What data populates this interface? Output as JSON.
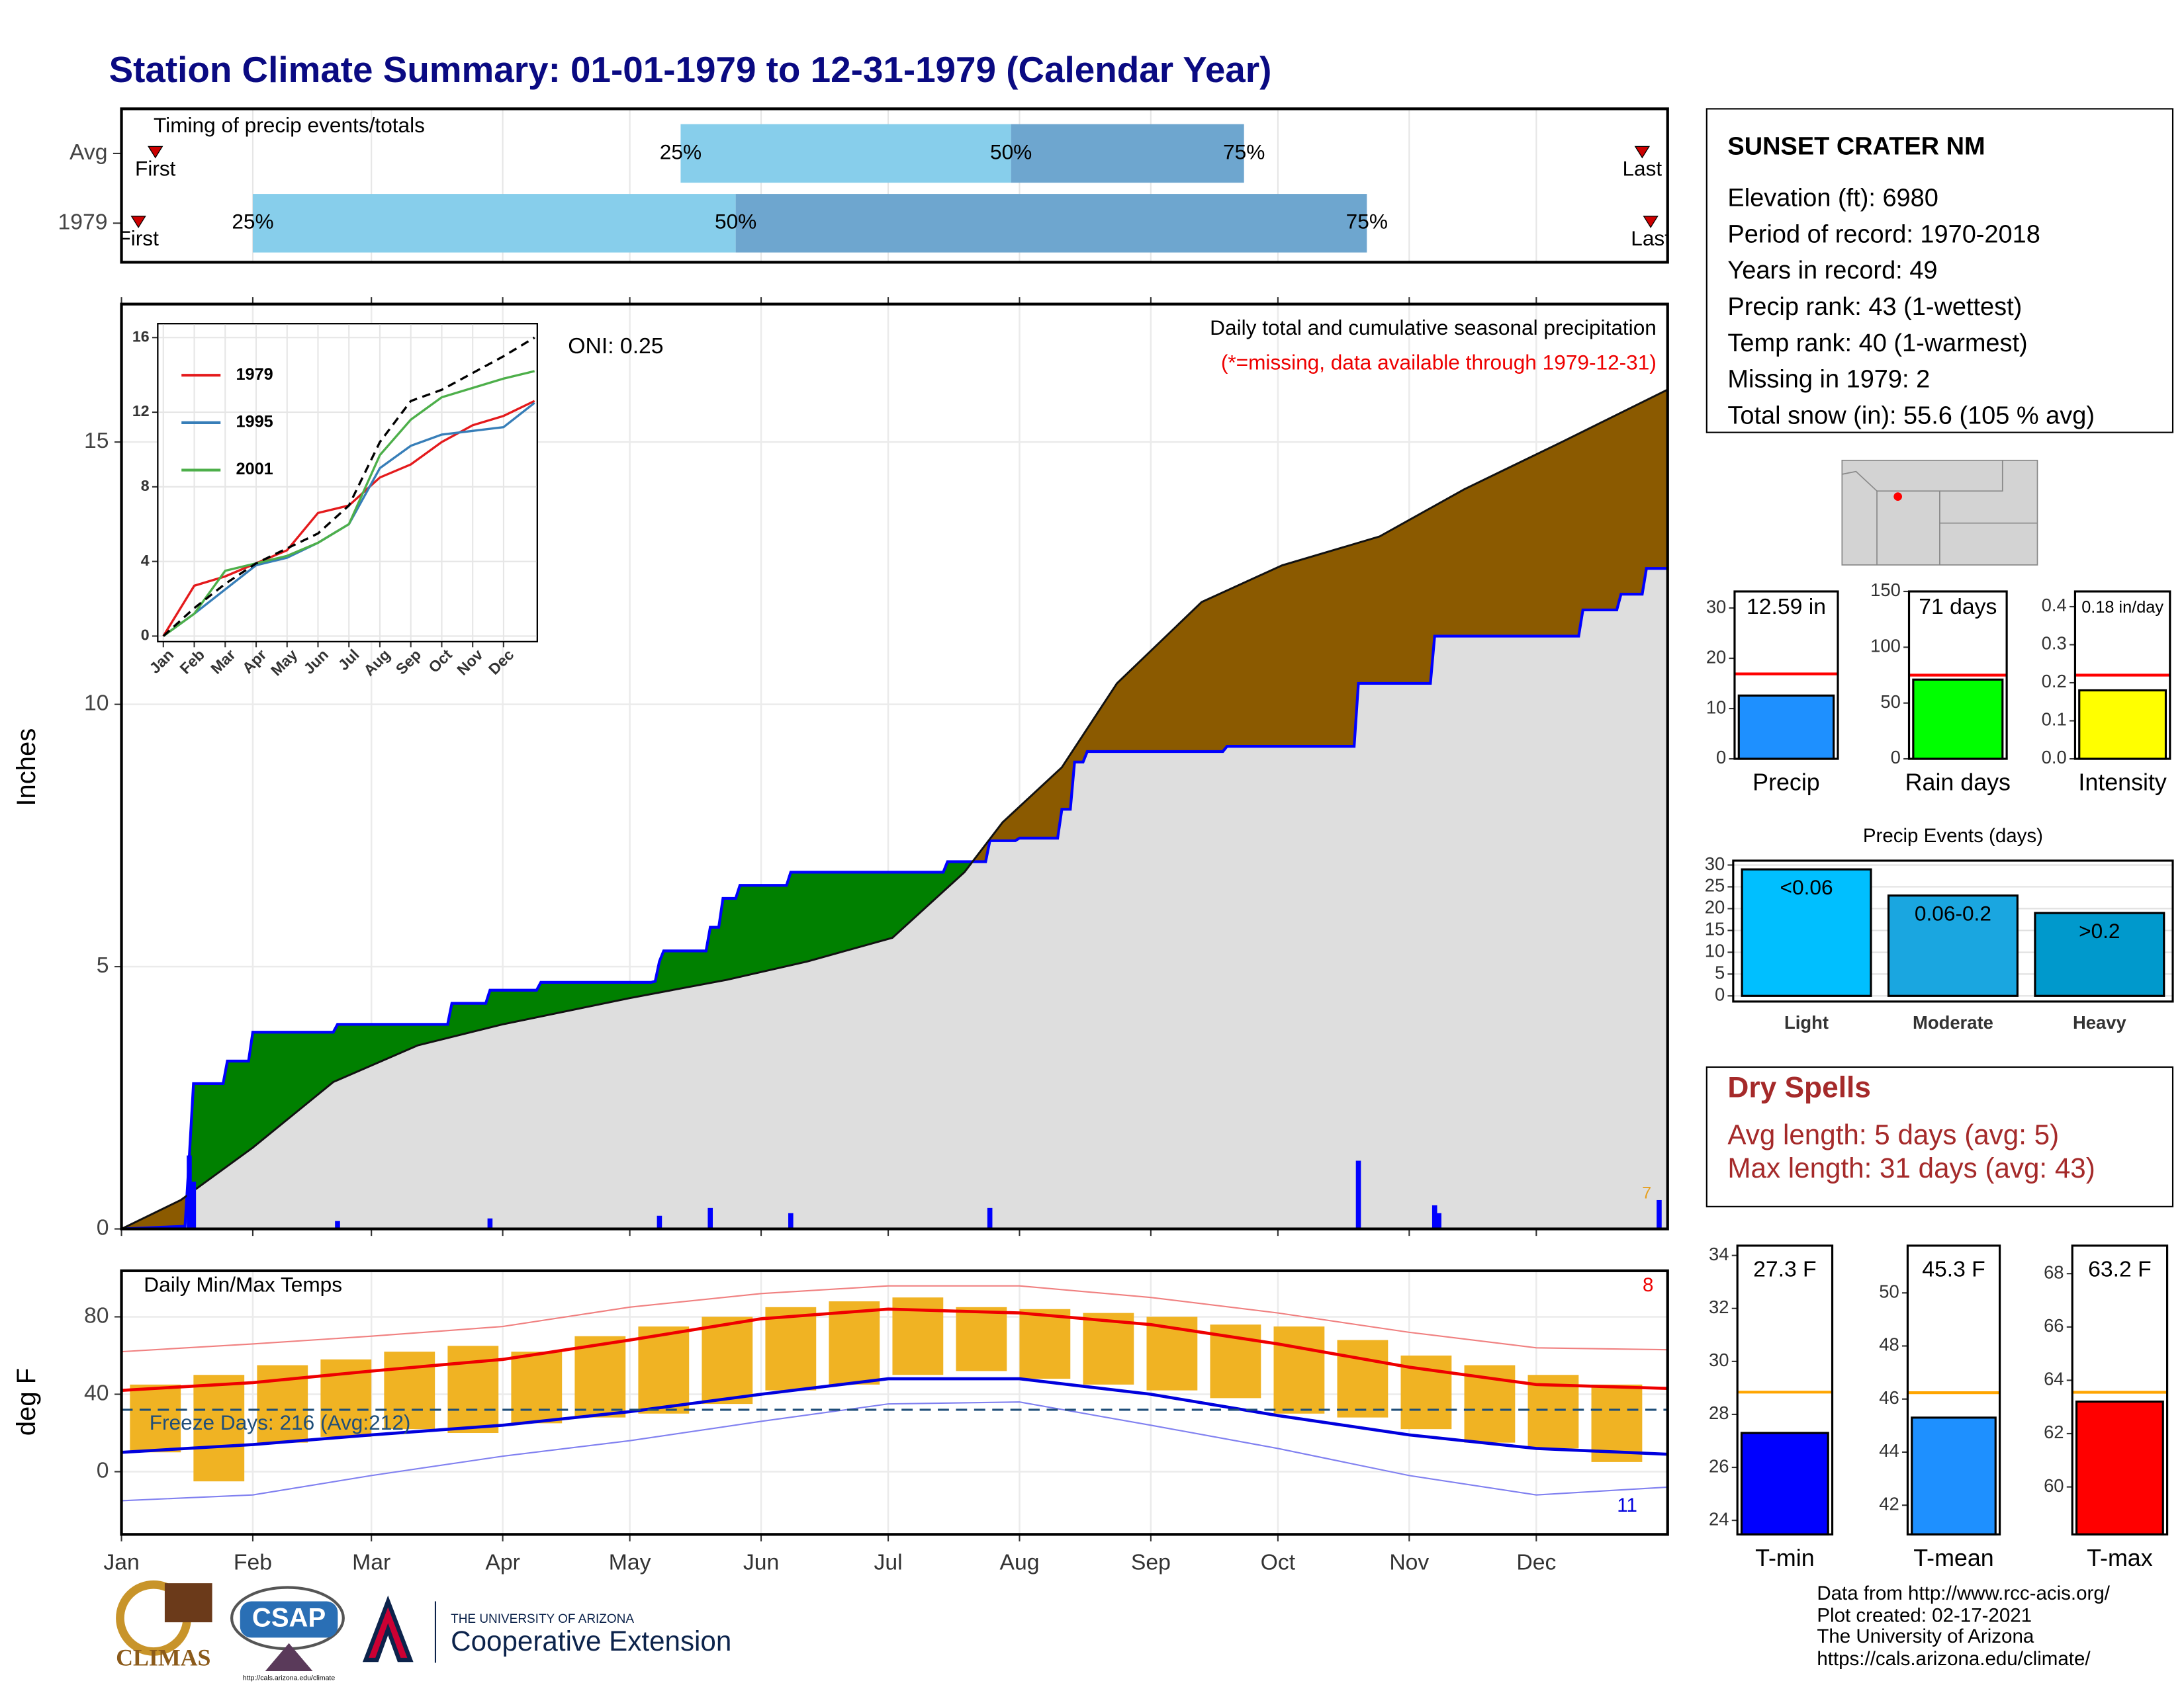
{
  "title": "Station Climate Summary: 01-01-1979 to 12-31-1979 (Calendar Year)",
  "station_info": {
    "name": "SUNSET CRATER NM",
    "lines": [
      "Elevation (ft): 6980",
      "Period of record: 1970-2018",
      "Years in record: 49",
      "Precip rank: 43 (1-wettest)",
      "Temp rank: 40 (1-warmest)",
      "Missing in 1979: 2",
      "Total snow (in): 55.6 (105 % avg)"
    ]
  },
  "dry_spells": {
    "title": "Dry Spells",
    "lines": [
      "Avg length: 5 days (avg: 5)",
      "Max length: 31 days (avg: 43)"
    ]
  },
  "footer": {
    "lines": [
      "Data from http://www.rcc-acis.org/",
      "Plot created: 02-17-2021",
      "The University of Arizona",
      "https://cals.arizona.edu/climate/"
    ],
    "logos": [
      "CLIMAS",
      "CSAP",
      "http://cals.arizona.edu/climate",
      "THE UNIVERSITY OF ARIZONA",
      "Cooperative Extension"
    ]
  },
  "chart_data": [
    {
      "type": "timeline",
      "title": "Timing of precip events/totals",
      "xlim": [
        0,
        365
      ],
      "xticks": [
        0,
        31,
        59,
        90,
        120,
        151,
        181,
        212,
        243,
        273,
        304,
        334
      ],
      "rows": [
        {
          "label": "Avg",
          "first": 8,
          "q25": 132,
          "q50": 210,
          "q75": 265,
          "last": 359
        },
        {
          "label": "1979",
          "first": 4,
          "q25": 31,
          "q50": 145,
          "q75": 294,
          "last": 361
        }
      ],
      "point_labels": {
        "first": "First",
        "q25": "25%",
        "q50": "50%",
        "q75": "75%",
        "last": "Last"
      },
      "colors": [
        "#87ceeb",
        "#6ea6cf"
      ],
      "marker_color": "#cc0000"
    },
    {
      "type": "area",
      "ylabel": "Inches",
      "annotation": "Daily total and cumulative seasonal precipitation",
      "note": "(*=missing, data available through 1979-12-31)",
      "oni": "ONI: 0.25",
      "corner_note": "7",
      "xlim": [
        0,
        365
      ],
      "xticks": [
        0,
        31,
        59,
        90,
        120,
        151,
        181,
        212,
        243,
        273,
        304,
        334
      ],
      "ylim": [
        0,
        17.63
      ],
      "yticks": [
        0,
        5,
        10,
        15
      ],
      "grid": true,
      "fill_above": "#008000",
      "fill_below": "#8b5a00",
      "fill_base": "#dedede",
      "series": [
        {
          "color": "#0000ff",
          "x": [
            0,
            15,
            16,
            17,
            24,
            25,
            30,
            31,
            50,
            51,
            77,
            78,
            86,
            87,
            98,
            99,
            125,
            126,
            127,
            128,
            138,
            139,
            141,
            142,
            145,
            146,
            157,
            158,
            194,
            195,
            204,
            205,
            211,
            212,
            221,
            222,
            224,
            225,
            227,
            228,
            260,
            261,
            291,
            292,
            309,
            310,
            344,
            345,
            353,
            354,
            359,
            360,
            365
          ],
          "values": [
            0,
            0.05,
            1.36,
            2.77,
            2.77,
            3.2,
            3.2,
            3.75,
            3.75,
            3.9,
            3.9,
            4.3,
            4.3,
            4.55,
            4.55,
            4.7,
            4.7,
            4.72,
            5.1,
            5.3,
            5.3,
            5.75,
            5.75,
            6.3,
            6.3,
            6.55,
            6.55,
            6.8,
            6.8,
            7.0,
            7.0,
            7.4,
            7.4,
            7.45,
            7.45,
            8.0,
            8.0,
            8.9,
            8.9,
            9.1,
            9.1,
            9.2,
            9.2,
            10.4,
            10.4,
            11.3,
            11.3,
            11.8,
            11.8,
            12.1,
            12.1,
            12.59,
            12.59
          ]
        },
        {
          "color": "#111111",
          "x": [
            0,
            14,
            31,
            50,
            70,
            90,
            120,
            143,
            162,
            182,
            199,
            208,
            222,
            235,
            255,
            274,
            297,
            317,
            340,
            365
          ],
          "values": [
            0,
            0.55,
            1.55,
            2.8,
            3.5,
            3.9,
            4.4,
            4.75,
            5.1,
            5.55,
            6.8,
            7.75,
            8.8,
            10.4,
            11.95,
            12.65,
            13.2,
            14.1,
            15.0,
            16.0
          ]
        }
      ],
      "daily": {
        "color": "#0000ff",
        "x": [
          16,
          17,
          51,
          87,
          127,
          139,
          158,
          205,
          292,
          310,
          311,
          363
        ],
        "values": [
          1.4,
          0.9,
          0.15,
          0.2,
          0.25,
          0.4,
          0.3,
          0.4,
          1.3,
          0.45,
          0.3,
          0.55
        ]
      }
    },
    {
      "type": "line",
      "xlim": [
        0,
        12
      ],
      "ylim": [
        0,
        16
      ],
      "yticks": [
        0,
        4,
        8,
        12,
        16
      ],
      "xticks": [
        {
          "value": 0,
          "label": "Jan"
        },
        {
          "value": 1,
          "label": "Feb"
        },
        {
          "value": 2,
          "label": "Mar"
        },
        {
          "value": 3,
          "label": "Apr"
        },
        {
          "value": 4,
          "label": "May"
        },
        {
          "value": 5,
          "label": "Jun"
        },
        {
          "value": 6,
          "label": "Jul"
        },
        {
          "value": 7,
          "label": "Aug"
        },
        {
          "value": 8,
          "label": "Sep"
        },
        {
          "value": 9,
          "label": "Oct"
        },
        {
          "value": 10,
          "label": "Nov"
        },
        {
          "value": 11,
          "label": "Dec"
        }
      ],
      "x": [
        0,
        1,
        2,
        3,
        4,
        5,
        6,
        7,
        8,
        9,
        10,
        11,
        12
      ],
      "series": [
        {
          "name": "1979",
          "color": "#e41a1c",
          "values": [
            0,
            2.7,
            3.2,
            3.9,
            4.6,
            6.6,
            7.0,
            8.5,
            9.2,
            10.4,
            11.3,
            11.8,
            12.6
          ]
        },
        {
          "name": "1995",
          "color": "#377eb8",
          "values": [
            0,
            1.2,
            2.5,
            3.8,
            4.2,
            5.0,
            6.0,
            9.0,
            10.2,
            10.8,
            11.0,
            11.2,
            12.5
          ]
        },
        {
          "name": "2001",
          "color": "#4daf4a",
          "values": [
            0,
            1.2,
            3.5,
            3.9,
            4.3,
            5.0,
            6.0,
            9.7,
            11.6,
            12.8,
            13.3,
            13.8,
            14.2
          ]
        },
        {
          "color": "#000000",
          "dash": true,
          "values": [
            0,
            1.5,
            2.8,
            3.9,
            4.7,
            5.5,
            7.0,
            10.4,
            12.6,
            13.2,
            14.1,
            15.0,
            16.0
          ]
        }
      ]
    },
    {
      "type": "range",
      "title": "Daily Min/Max Temps",
      "ylabel": "deg F",
      "freeze_text": "Freeze Days: 216 (Avg:212)",
      "freeze_line": 32,
      "high_count": "8",
      "low_count": "11",
      "xlim": [
        0,
        365
      ],
      "ylim": [
        -32.4,
        103.8
      ],
      "yticks": [
        0,
        40,
        80
      ],
      "grid": true,
      "xticks": [
        {
          "value": 0,
          "label": "Jan"
        },
        {
          "value": 31,
          "label": "Feb"
        },
        {
          "value": 59,
          "label": "Mar"
        },
        {
          "value": 90,
          "label": "Apr"
        },
        {
          "value": 120,
          "label": "May"
        },
        {
          "value": 151,
          "label": "Jun"
        },
        {
          "value": 181,
          "label": "Jul"
        },
        {
          "value": 212,
          "label": "Aug"
        },
        {
          "value": 243,
          "label": "Sep"
        },
        {
          "value": 273,
          "label": "Oct"
        },
        {
          "value": 304,
          "label": "Nov"
        },
        {
          "value": 334,
          "label": "Dec"
        }
      ],
      "x": [
        0,
        31,
        59,
        90,
        120,
        151,
        181,
        212,
        243,
        273,
        304,
        334,
        365
      ],
      "series": [
        {
          "color": "#f08080",
          "width": 1,
          "values": [
            62,
            66,
            70,
            75,
            85,
            92,
            96,
            96,
            90,
            82,
            72,
            64,
            63
          ]
        },
        {
          "color": "#ee0000",
          "width": 2.2,
          "values": [
            42,
            46,
            52,
            58,
            68,
            79,
            84,
            82,
            76,
            66,
            54,
            45,
            43
          ]
        },
        {
          "color": "#0000dd",
          "width": 2.2,
          "values": [
            10,
            14,
            19,
            24,
            31,
            40,
            48,
            48,
            40,
            29,
            19,
            12,
            9
          ]
        },
        {
          "color": "#8080f0",
          "width": 1,
          "values": [
            -15,
            -12,
            -2,
            8,
            16,
            26,
            35,
            36,
            24,
            12,
            -2,
            -12,
            -8
          ]
        }
      ],
      "bars": {
        "color": "#f0b323",
        "x": [
          8,
          23,
          38,
          53,
          68,
          83,
          98,
          113,
          128,
          143,
          158,
          173,
          188,
          203,
          218,
          233,
          248,
          263,
          278,
          293,
          308,
          323,
          338,
          353
        ],
        "low": [
          10,
          -5,
          15,
          18,
          22,
          20,
          25,
          28,
          30,
          35,
          42,
          45,
          50,
          52,
          48,
          45,
          42,
          38,
          30,
          28,
          22,
          15,
          12,
          5
        ],
        "high": [
          45,
          50,
          55,
          58,
          62,
          65,
          62,
          70,
          75,
          80,
          85,
          88,
          90,
          85,
          84,
          82,
          80,
          76,
          75,
          68,
          60,
          55,
          50,
          45
        ]
      }
    },
    {
      "type": "bar",
      "categories": [
        "Precip"
      ],
      "values": [
        12.59
      ],
      "value_labels": [
        "12.59 in"
      ],
      "color": "#1e90ff",
      "ylim": [
        0,
        33.3
      ],
      "yticks": [
        0,
        10,
        20,
        30
      ],
      "reference": 16.9,
      "reference_color": "#ff0000"
    },
    {
      "type": "bar",
      "categories": [
        "Rain days"
      ],
      "values": [
        71
      ],
      "value_labels": [
        "71 days"
      ],
      "color": "#00ff00",
      "ylim": [
        0,
        150
      ],
      "yticks": [
        0,
        50,
        100,
        150
      ],
      "reference": 75,
      "reference_color": "#ff0000"
    },
    {
      "type": "bar",
      "categories": [
        "Intensity"
      ],
      "values": [
        0.18
      ],
      "value_labels": [
        "0.18 in/day"
      ],
      "color": "#ffff00",
      "ylim": [
        0,
        0.44
      ],
      "yticks": [
        {
          "value": 0,
          "label": "0.0"
        },
        0.1,
        0.2,
        0.3,
        0.4
      ],
      "reference": 0.22,
      "reference_color": "#ff0000"
    },
    {
      "type": "bar",
      "title": "Precip Events (days)",
      "categories": [
        "Light",
        "Moderate",
        "Heavy"
      ],
      "values": [
        29,
        23,
        19
      ],
      "bar_labels": [
        "<0.06",
        "0.06-0.2",
        ">0.2"
      ],
      "colors": [
        "#00bfff",
        "#1aa6e0",
        "#0099cc"
      ],
      "ylim": [
        -1.3,
        31
      ],
      "yticks": [
        0,
        5,
        10,
        15,
        20,
        25,
        30
      ],
      "grid": true
    },
    {
      "type": "bar",
      "categories": [
        "T-min"
      ],
      "values": [
        27.3
      ],
      "value_labels": [
        "27.3 F"
      ],
      "color": "#0000ff",
      "ylim": [
        23.47,
        34.37
      ],
      "yticks": [
        24,
        26,
        28,
        30,
        32,
        34
      ],
      "reference": 28.84,
      "reference_color": "#ffa500"
    },
    {
      "type": "bar",
      "categories": [
        "T-mean"
      ],
      "values": [
        45.3
      ],
      "value_labels": [
        "45.3 F"
      ],
      "color": "#1e90ff",
      "ylim": [
        40.9,
        51.78
      ],
      "yticks": [
        42,
        44,
        46,
        48,
        50
      ],
      "reference": 46.24,
      "reference_color": "#ffa500"
    },
    {
      "type": "bar",
      "categories": [
        "T-max"
      ],
      "values": [
        63.2
      ],
      "value_labels": [
        "63.2 F"
      ],
      "color": "#ff0000",
      "ylim": [
        58.22,
        69.05
      ],
      "yticks": [
        60,
        62,
        64,
        66,
        68
      ],
      "reference": 63.55,
      "reference_color": "#ffa500"
    }
  ]
}
